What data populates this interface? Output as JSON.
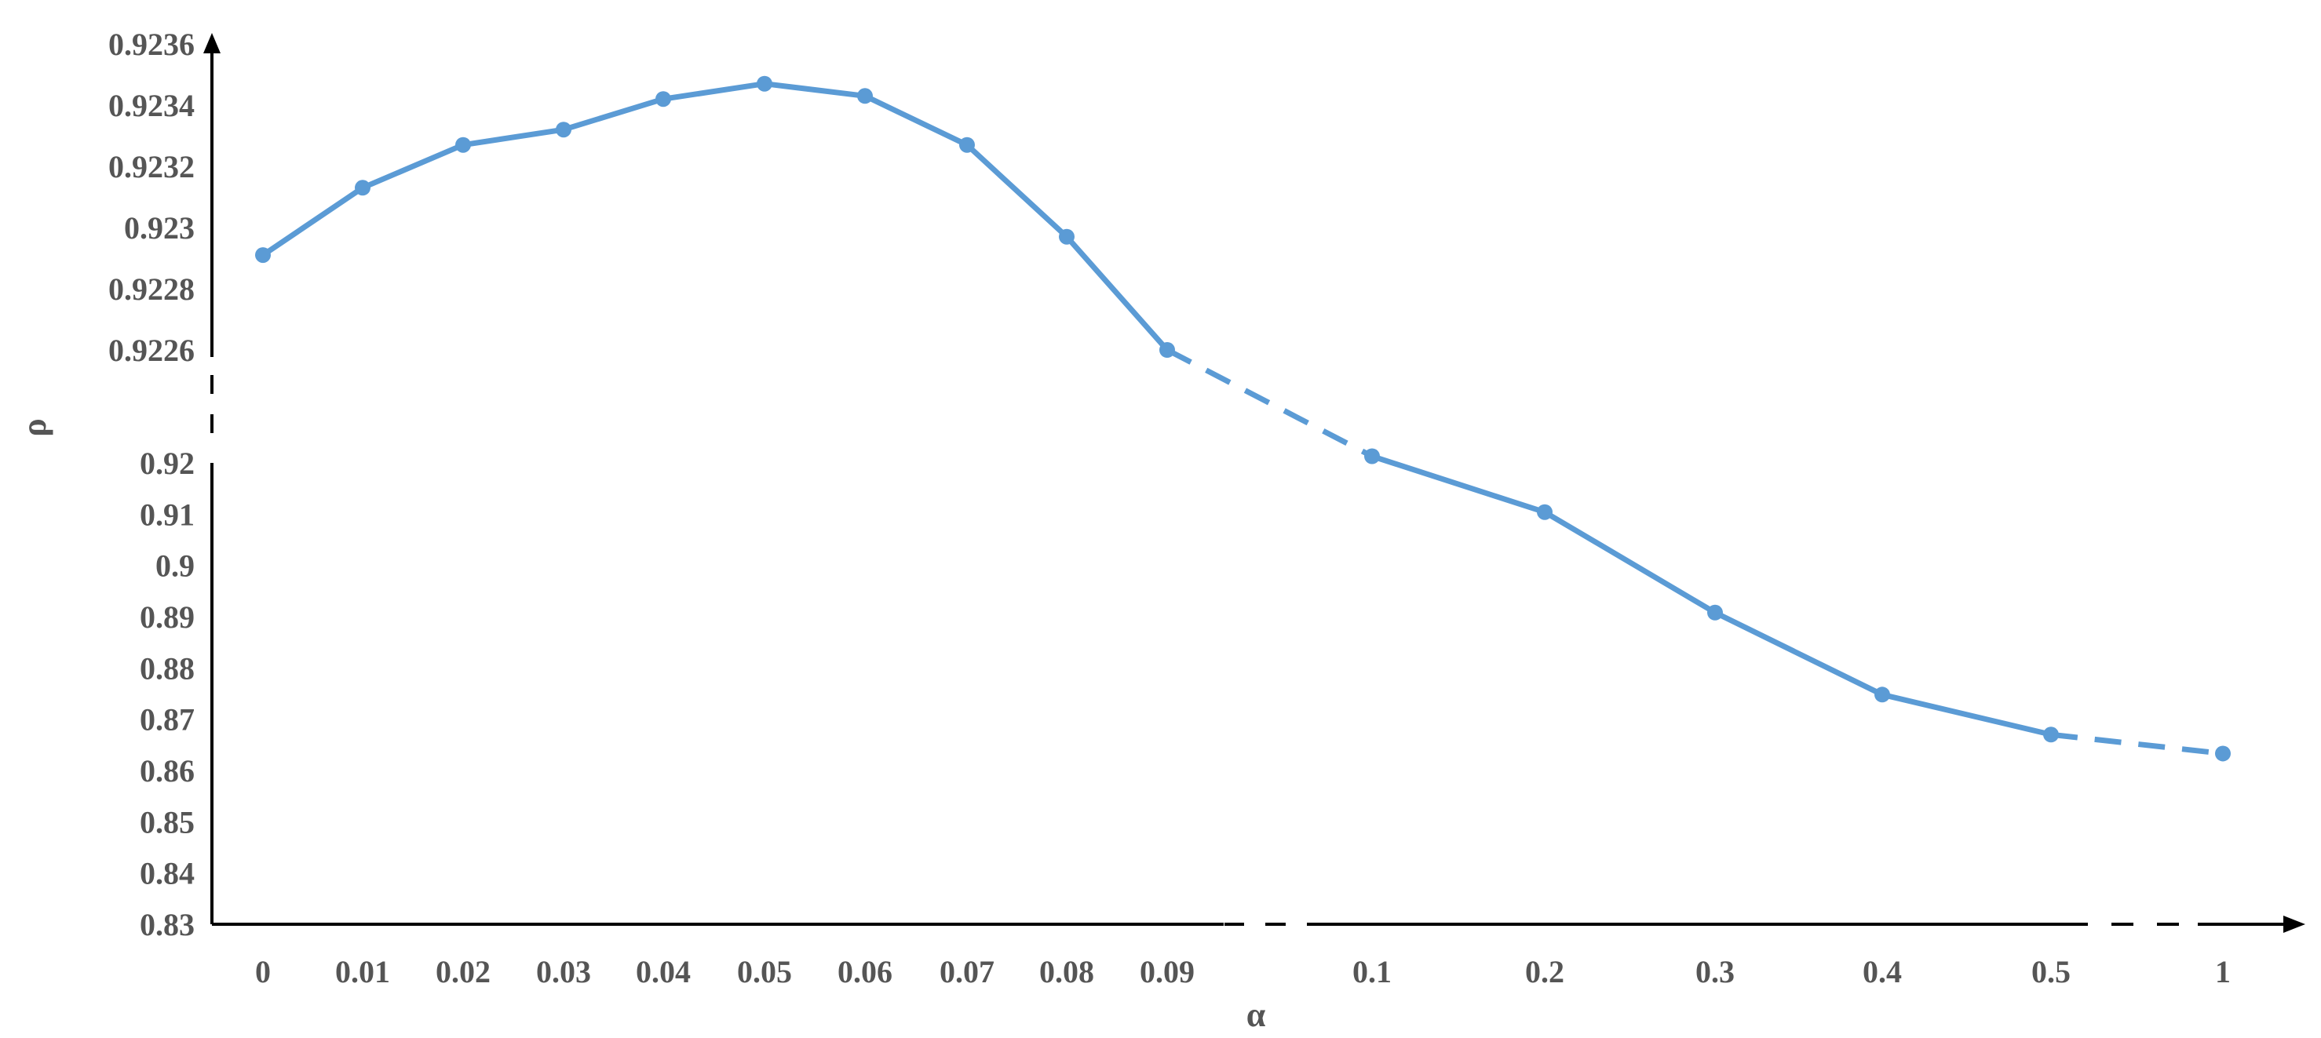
{
  "chart_data": {
    "type": "line",
    "xlabel": "α",
    "ylabel": "ρ",
    "broken_axes": true,
    "grid": false,
    "legend": "none",
    "series_color": "#5b9bd5",
    "x": [
      "0",
      "0.01",
      "0.02",
      "0.03",
      "0.04",
      "0.05",
      "0.06",
      "0.07",
      "0.08",
      "0.09",
      "0.1",
      "0.2",
      "0.3",
      "0.4",
      "0.5",
      "1"
    ],
    "series": [
      {
        "values": [
          0.92291,
          0.92313,
          0.92327,
          0.92332,
          0.92342,
          0.92347,
          0.92343,
          0.92327,
          0.92297,
          0.9226,
          0.9213,
          0.9104,
          0.8908,
          0.8748,
          0.867,
          0.8633
        ]
      }
    ],
    "y_upper_segment": {
      "ylim": [
        0.9226,
        0.9236
      ],
      "ticks": [
        "0.9226",
        "0.9228",
        "0.923",
        "0.9232",
        "0.9234",
        "0.9236"
      ]
    },
    "y_lower_segment": {
      "ylim": [
        0.83,
        0.92
      ],
      "ticks": [
        "0.83",
        "0.84",
        "0.85",
        "0.86",
        "0.87",
        "0.88",
        "0.89",
        "0.9",
        "0.91",
        "0.92"
      ]
    },
    "dashed_segments": [
      [
        "0.09",
        "0.1"
      ],
      [
        "0.5",
        "1"
      ]
    ]
  }
}
